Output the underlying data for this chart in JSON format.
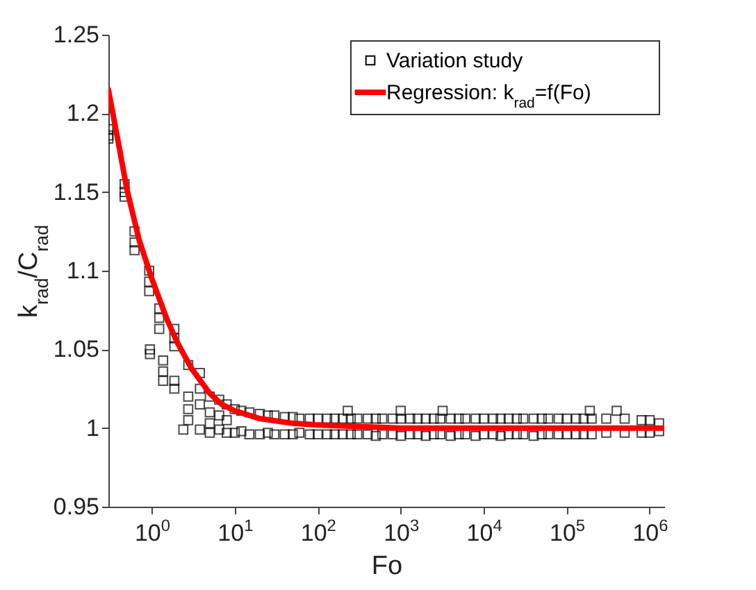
{
  "chart_data": {
    "type": "scatter",
    "xlabel": "Fo",
    "ylabel": "k$_{rad}$/C$_{rad}$",
    "log": "x",
    "xlim": [
      0.3,
      1500000
    ],
    "ylim": [
      0.95,
      1.25
    ],
    "xticks": [
      {
        "value": 1,
        "label": "10$^{0}$"
      },
      {
        "value": 10,
        "label": "10$^{1}$"
      },
      {
        "value": 100,
        "label": "10$^{2}$"
      },
      {
        "value": 1000,
        "label": "10$^{3}$"
      },
      {
        "value": 10000,
        "label": "10$^{4}$"
      },
      {
        "value": 100000,
        "label": "10$^{5}$"
      },
      {
        "value": 1000000,
        "label": "10$^{6}$"
      }
    ],
    "yticks": [
      0.95,
      1,
      1.05,
      1.1,
      1.15,
      1.2,
      1.25
    ],
    "grid": false,
    "legend": "top right",
    "series": [
      {
        "name": "Variation study",
        "marker": "square",
        "color": "#000000",
        "x": [
          0.3,
          0.3,
          0.3,
          0.47,
          0.47,
          0.47,
          0.62,
          0.62,
          0.62,
          0.93,
          0.93,
          0.93,
          0.95,
          0.95,
          1.23,
          1.23,
          1.23,
          1.37,
          1.37,
          1.37,
          1.87,
          1.87,
          1.87,
          1.87,
          1.87,
          2.4,
          2.75,
          2.75,
          2.75,
          2.75,
          3.8,
          3.8,
          3.8,
          3.8,
          5,
          5,
          5,
          5,
          6.5,
          6.5,
          6.5,
          8,
          8,
          8,
          10,
          10,
          12,
          12,
          15,
          15,
          20,
          20,
          25,
          25,
          30,
          30,
          40,
          40,
          50,
          50,
          60,
          60,
          80,
          80,
          100,
          100,
          130,
          130,
          160,
          160,
          200,
          200,
          230,
          250,
          250,
          300,
          300,
          400,
          400,
          500,
          500,
          600,
          600,
          800,
          800,
          1000,
          1000,
          1000,
          1300,
          1300,
          1600,
          1600,
          2000,
          2000,
          2500,
          2500,
          3000,
          3000,
          3200,
          4000,
          4000,
          5000,
          5000,
          6000,
          6000,
          8000,
          8000,
          10000,
          10000,
          13000,
          13000,
          16000,
          16000,
          20000,
          20000,
          25000,
          25000,
          30000,
          30000,
          40000,
          40000,
          50000,
          50000,
          60000,
          60000,
          80000,
          80000,
          100000,
          100000,
          130000,
          130000,
          160000,
          160000,
          190000,
          200000,
          200000,
          300000,
          300000,
          400000,
          500000,
          500000,
          800000,
          800000,
          1000000,
          1000000,
          1300000,
          1300000
        ],
        "values": [
          1.186,
          1.19,
          1.184,
          1.155,
          1.15,
          1.147,
          1.125,
          1.118,
          1.113,
          1.1,
          1.093,
          1.087,
          1.05,
          1.047,
          1.076,
          1.07,
          1.063,
          1.043,
          1.036,
          1.03,
          1.063,
          1.057,
          1.052,
          1.03,
          1.025,
          0.999,
          1.04,
          1.02,
          1.012,
          1.005,
          1.035,
          1.025,
          1.015,
          0.999,
          1.02,
          1.01,
          1.003,
          0.997,
          1.018,
          1.008,
          0.999,
          1.015,
          1.005,
          0.997,
          1.012,
          0.997,
          1.011,
          0.998,
          1.01,
          0.996,
          1.009,
          0.996,
          1.008,
          0.997,
          1.008,
          0.996,
          1.007,
          0.996,
          1.007,
          0.996,
          1.006,
          0.997,
          1.006,
          0.996,
          1.006,
          0.996,
          1.006,
          0.996,
          1.006,
          0.996,
          1.006,
          0.996,
          1.011,
          1.006,
          0.996,
          1.006,
          0.996,
          1.006,
          0.996,
          1.006,
          0.995,
          1.006,
          0.996,
          1.006,
          0.996,
          1.011,
          1.006,
          0.995,
          1.006,
          0.996,
          1.006,
          0.996,
          1.006,
          0.995,
          1.006,
          0.996,
          1.006,
          0.996,
          1.011,
          1.006,
          0.995,
          1.006,
          0.996,
          1.006,
          0.996,
          1.006,
          0.995,
          1.006,
          0.996,
          1.006,
          0.996,
          1.006,
          0.995,
          1.006,
          0.996,
          1.006,
          0.996,
          1.006,
          0.996,
          1.006,
          0.995,
          1.006,
          0.996,
          1.006,
          0.996,
          1.006,
          0.996,
          1.006,
          0.996,
          1.006,
          0.996,
          1.006,
          0.996,
          1.011,
          1.006,
          0.996,
          1.006,
          0.997,
          1.011,
          1.006,
          0.997,
          1.005,
          0.997,
          1.005,
          0.997,
          1.003,
          0.998
        ]
      },
      {
        "name": "Regression: k$_{rad}$=f(Fo)",
        "type": "line",
        "marker": "none",
        "color": "#ff0000",
        "x": [
          0.3,
          0.4,
          0.5,
          0.7,
          1,
          1.5,
          2,
          3,
          5,
          7,
          10,
          20,
          50,
          100,
          300,
          1000,
          10000,
          100000,
          1000000,
          1500000
        ],
        "values": [
          1.215,
          1.18,
          1.152,
          1.12,
          1.095,
          1.07,
          1.055,
          1.038,
          1.022,
          1.015,
          1.011,
          1.006,
          1.003,
          1.002,
          1.001,
          1,
          1,
          1,
          1,
          1
        ]
      }
    ]
  }
}
